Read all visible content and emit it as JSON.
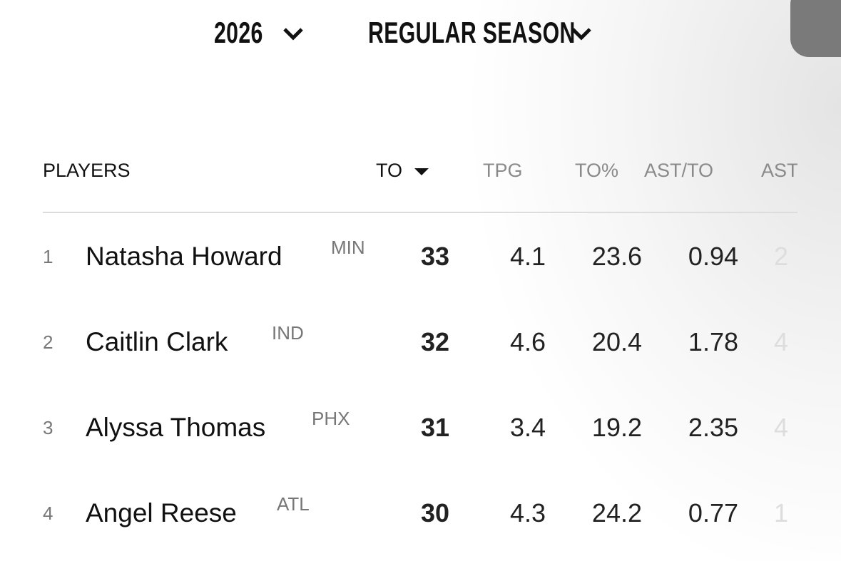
{
  "filters": {
    "season": "2026",
    "season_type": "REGULAR SEASON"
  },
  "table": {
    "headers": [
      "PLAYERS",
      "TO",
      "TPG",
      "TO%",
      "AST/TO",
      "AST"
    ],
    "rows": [
      [
        "1",
        "Natasha Howard",
        "MIN",
        "33",
        "4.1",
        "23.6",
        "0.94",
        "2"
      ],
      [
        "2",
        "Caitlin Clark",
        "IND",
        "32",
        "4.6",
        "20.4",
        "1.78",
        "4"
      ],
      [
        "3",
        "Alyssa Thomas",
        "PHX",
        "31",
        "3.4",
        "19.2",
        "2.35",
        "4"
      ],
      [
        "4",
        "Angel Reese",
        "ATL",
        "30",
        "4.3",
        "24.2",
        "0.77",
        "1"
      ]
    ]
  }
}
